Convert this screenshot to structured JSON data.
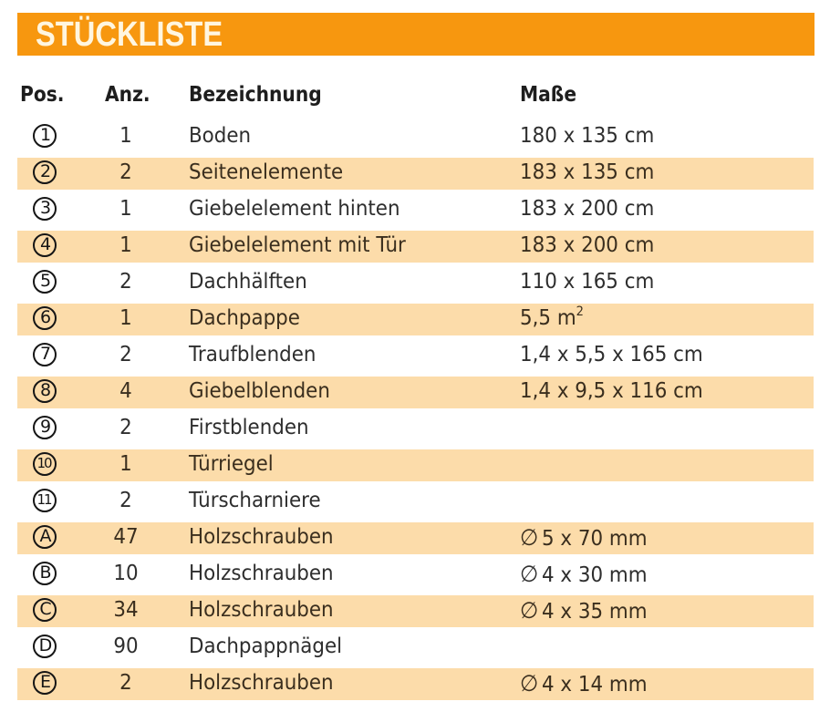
{
  "title": "STÜCKLISTE",
  "colors": {
    "title_bar": "#f7970f",
    "title_text": "#fff6e0",
    "row_stripe": "#fcdcaa",
    "text": "#2e2e2e"
  },
  "columns": {
    "pos": "Pos.",
    "anz": "Anz.",
    "bez": "Bezeichnung",
    "mas": "Maße"
  },
  "rows": [
    {
      "pos": "1",
      "anz": "1",
      "bez": "Boden",
      "mas": "180 x 135 cm"
    },
    {
      "pos": "2",
      "anz": "2",
      "bez": "Seitenelemente",
      "mas": "183 x 135 cm"
    },
    {
      "pos": "3",
      "anz": "1",
      "bez": "Giebelelement hinten",
      "mas": "183 x 200 cm"
    },
    {
      "pos": "4",
      "anz": "1",
      "bez": "Giebelelement mit Tür",
      "mas": "183 x 200 cm"
    },
    {
      "pos": "5",
      "anz": "2",
      "bez": "Dachhälften",
      "mas": "110 x 165 cm"
    },
    {
      "pos": "6",
      "anz": "1",
      "bez": "Dachpappe",
      "mas": "5,5 m",
      "mas_sup": "2"
    },
    {
      "pos": "7",
      "anz": "2",
      "bez": "Traufblenden",
      "mas": "1,4 x 5,5 x 165 cm"
    },
    {
      "pos": "8",
      "anz": "4",
      "bez": "Giebelblenden",
      "mas": "1,4 x 9,5 x 116 cm"
    },
    {
      "pos": "9",
      "anz": "2",
      "bez": "Firstblenden",
      "mas": ""
    },
    {
      "pos": "10",
      "anz": "1",
      "bez": "Türriegel",
      "mas": ""
    },
    {
      "pos": "11",
      "anz": "2",
      "bez": "Türscharniere",
      "mas": ""
    },
    {
      "pos": "A",
      "anz": "47",
      "bez": "Holzschrauben",
      "dia": "∅",
      "mas": "5 x 70 mm"
    },
    {
      "pos": "B",
      "anz": "10",
      "bez": "Holzschrauben",
      "dia": "∅",
      "mas": "4 x 30 mm"
    },
    {
      "pos": "C",
      "anz": "34",
      "bez": "Holzschrauben",
      "dia": "∅",
      "mas": "4 x 35 mm"
    },
    {
      "pos": "D",
      "anz": "90",
      "bez": "Dachpappnägel",
      "mas": ""
    },
    {
      "pos": "E",
      "anz": "2",
      "bez": "Holzschrauben",
      "dia": "∅",
      "mas": "4 x 14 mm"
    }
  ]
}
